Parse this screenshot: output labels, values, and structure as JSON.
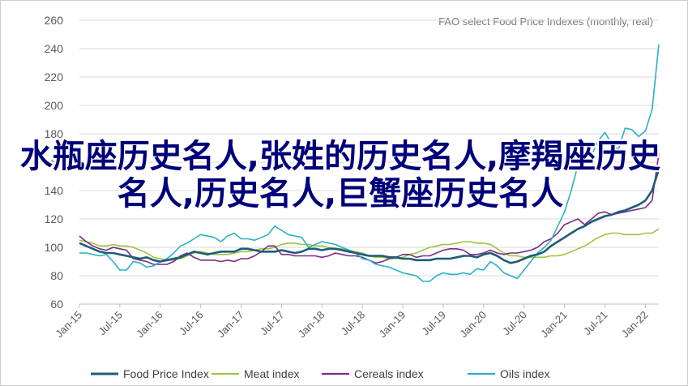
{
  "chart_data": {
    "type": "line",
    "title": "FAO select Food Price Indexes (monthly, real)",
    "ylim": [
      60,
      260
    ],
    "yticks": [
      "60",
      "80",
      "100",
      "120",
      "140",
      "160",
      "180",
      "200",
      "220",
      "240",
      "260"
    ],
    "xticks": [
      "Jan-15",
      "Jul-15",
      "Jan-16",
      "Jul-16",
      "Jan-17",
      "Jul-17",
      "Jan-18",
      "Jul-18",
      "Jan-19",
      "Jul-19",
      "Jan-20",
      "Jul-20",
      "Jan-21",
      "Jul-21",
      "Jan-22"
    ],
    "x_start": "2015-01",
    "legend_position": "bottom",
    "grid": true,
    "series": [
      {
        "name": "Food Price Index",
        "color": "#1f5c7a",
        "values": [
          103,
          101,
          99,
          97,
          96,
          96,
          95,
          94,
          93,
          92,
          93,
          91,
          90,
          91,
          92,
          93,
          95,
          97,
          96,
          95,
          96,
          97,
          97,
          97,
          99,
          99,
          98,
          97,
          97,
          97,
          98,
          97,
          96,
          97,
          99,
          99,
          98,
          99,
          99,
          98,
          97,
          96,
          95,
          94,
          94,
          94,
          93,
          93,
          92,
          92,
          91,
          91,
          91,
          92,
          92,
          92,
          93,
          94,
          94,
          93,
          95,
          96,
          94,
          91,
          89,
          90,
          92,
          94,
          95,
          97,
          101,
          104,
          107,
          110,
          113,
          115,
          118,
          120,
          122,
          123,
          125,
          126,
          128,
          130,
          133,
          140,
          155
        ]
      },
      {
        "name": "Meat index",
        "color": "#9bc53d",
        "values": [
          105,
          104,
          103,
          101,
          101,
          102,
          101,
          101,
          100,
          98,
          96,
          93,
          92,
          91,
          91,
          92,
          94,
          96,
          97,
          96,
          95,
          95,
          95,
          96,
          97,
          97,
          98,
          99,
          99,
          100,
          102,
          103,
          103,
          102,
          102,
          101,
          101,
          100,
          99,
          99,
          98,
          97,
          96,
          94,
          93,
          93,
          92,
          92,
          93,
          95,
          96,
          98,
          100,
          101,
          102,
          102,
          103,
          104,
          104,
          103,
          103,
          102,
          99,
          96,
          94,
          94,
          93,
          93,
          93,
          93,
          94,
          94,
          95,
          97,
          99,
          101,
          104,
          107,
          109,
          110,
          110,
          109,
          109,
          109,
          110,
          110,
          113
        ]
      },
      {
        "name": "Cereals index",
        "color": "#7b2c84",
        "values": [
          108,
          104,
          101,
          99,
          98,
          100,
          99,
          98,
          92,
          91,
          90,
          88,
          88,
          88,
          90,
          94,
          96,
          93,
          91,
          91,
          91,
          90,
          91,
          90,
          92,
          92,
          94,
          97,
          101,
          101,
          95,
          95,
          94,
          94,
          94,
          94,
          93,
          94,
          96,
          95,
          94,
          94,
          93,
          91,
          89,
          90,
          92,
          93,
          95,
          95,
          93,
          94,
          94,
          96,
          98,
          99,
          99,
          98,
          95,
          95,
          96,
          98,
          96,
          95,
          96,
          96,
          97,
          98,
          100,
          104,
          106,
          110,
          116,
          118,
          120,
          116,
          120,
          124,
          125,
          123,
          124,
          125,
          126,
          127,
          128,
          133,
          166
        ]
      },
      {
        "name": "Oils index",
        "color": "#2bb0c4",
        "values": [
          96,
          96,
          95,
          94,
          95,
          90,
          84,
          84,
          90,
          89,
          86,
          87,
          90,
          92,
          96,
          101,
          103,
          106,
          109,
          108,
          107,
          104,
          108,
          110,
          106,
          106,
          105,
          107,
          109,
          115,
          112,
          109,
          108,
          107,
          100,
          102,
          104,
          103,
          102,
          100,
          98,
          96,
          92,
          91,
          88,
          87,
          86,
          84,
          82,
          81,
          80,
          76,
          76,
          80,
          82,
          81,
          81,
          82,
          81,
          85,
          84,
          90,
          87,
          82,
          80,
          78,
          84,
          90,
          96,
          100,
          105,
          115,
          125,
          140,
          158,
          160,
          165,
          175,
          181,
          173,
          169,
          184,
          183,
          178,
          182,
          197,
          243
        ]
      }
    ]
  },
  "overlay_text": "水瓶座历史名人,张姓的历史名人,摩羯座历史名人,历史名人,巨蟹座历史名人"
}
